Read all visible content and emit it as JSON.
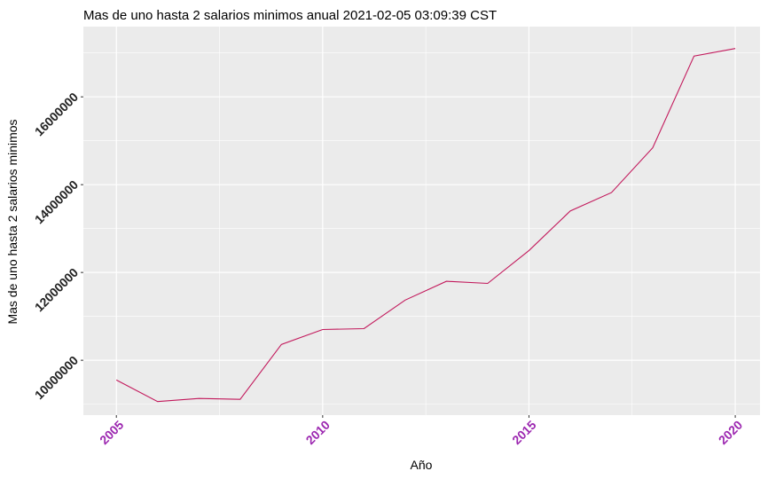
{
  "chart_data": {
    "type": "line",
    "title": "Mas de uno hasta 2 salarios minimos anual  2021-02-05 03:09:39 CST",
    "xlabel": "Año",
    "ylabel": "Mas de uno hasta 2 salarios minimos",
    "x": [
      2005,
      2006,
      2007,
      2008,
      2009,
      2010,
      2011,
      2012,
      2013,
      2014,
      2015,
      2016,
      2017,
      2018,
      2019,
      2020
    ],
    "series": [
      {
        "values": [
          9550000,
          9060000,
          9130000,
          9110000,
          10360000,
          10700000,
          10720000,
          11370000,
          11800000,
          11750000,
          12500000,
          13400000,
          13820000,
          14840000,
          16930000,
          17100000
        ]
      }
    ],
    "x_ticks": [
      "2005",
      "2010",
      "2015",
      "2020"
    ],
    "y_ticks": [
      "10000000",
      "12000000",
      "14000000",
      "16000000"
    ],
    "xlim": [
      2004.2,
      2020.6
    ],
    "ylim": [
      8750000,
      17600000
    ],
    "grid": true,
    "colors": {
      "line": "#c2185b",
      "panel": "#ebebeb",
      "grid": "#ffffff",
      "xtick": "#9c27b0"
    }
  }
}
